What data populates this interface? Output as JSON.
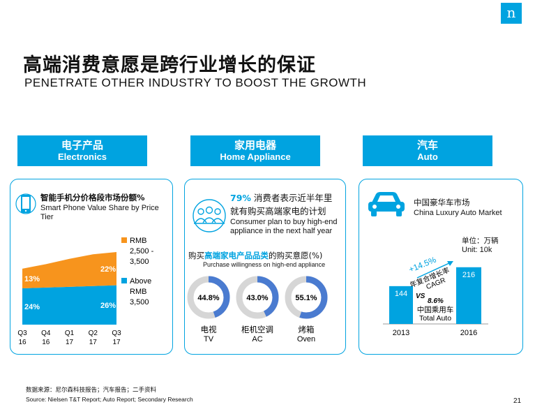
{
  "page": {
    "title_cn": "高端消费意愿是跨行业增长的保证",
    "title_en": "PENETRATE OTHER INDUSTRY TO BOOST THE GROWTH",
    "logo_letter": "n",
    "page_number": "21",
    "source_cn": "数据来源：尼尔森科技报告；汽车报告；二手资料",
    "source_en": "Source: Nielsen T&T Report; Auto Report; Secondary Research",
    "brand_color": "#00a3e0",
    "accent_orange": "#f7941d"
  },
  "categories": [
    {
      "cn": "电子产品",
      "en": "Electronics"
    },
    {
      "cn": "家用电器",
      "en": "Home Appliance"
    },
    {
      "cn": "汽车",
      "en": "Auto"
    }
  ],
  "electronics": {
    "icon": "smartphone-icon",
    "title_cn": "智能手机分价格段市场份额%",
    "title_en_1": "Smart Phone Value Share by Price",
    "title_en_2": "Tier"
  },
  "appliance": {
    "icon": "family-icon",
    "stat_pct": "79%",
    "stat_cn_rest": " 消费者表示近半年里",
    "stat_cn_2": "就有购买高端家电的计划",
    "stat_en_1": "Consumer plan to buy high-end",
    "stat_en_2": "appliance in the next half year",
    "willing_cn_pre": "购买",
    "willing_cn_hl": "高端家电产品品类",
    "willing_cn_post": "的购买意愿(%)",
    "willing_en": "Purchase willingness on high-end appliance"
  },
  "auto": {
    "icon": "car-icon",
    "title_cn": "中国豪华车市场",
    "title_en": "China Luxury Auto Market",
    "unit_cn": "单位：万辆",
    "unit_en": "Unit: 10k"
  },
  "chart_data": [
    {
      "type": "area",
      "categories": [
        "Q3 16",
        "Q4 16",
        "Q1 17",
        "Q2 17",
        "Q3 17"
      ],
      "tick_labels": [
        [
          "Q3",
          "16"
        ],
        [
          "Q4",
          "16"
        ],
        [
          "Q1",
          "17"
        ],
        [
          "Q2",
          "17"
        ],
        [
          "Q3",
          "17"
        ]
      ],
      "stacked": true,
      "ylim": [
        0,
        60
      ],
      "series": [
        {
          "name": "Above RMB 3,500",
          "legend": [
            "Above",
            "RMB",
            "3,500"
          ],
          "color": "#00a3e0",
          "values": [
            24,
            24.5,
            25,
            25.5,
            26
          ],
          "labels": [
            {
              "index": 0,
              "text": "24%"
            },
            {
              "index": 4,
              "text": "26%"
            }
          ]
        },
        {
          "name": "RMB 2,500 - 3,500",
          "legend": [
            "RMB",
            "2,500 -",
            "3,500"
          ],
          "color": "#f7941d",
          "values": [
            13,
            15.5,
            18.5,
            21,
            22
          ],
          "labels": [
            {
              "index": 0,
              "text": "13%"
            },
            {
              "index": 4,
              "text": "22%"
            }
          ]
        }
      ]
    },
    {
      "type": "pie",
      "subtype": "donut",
      "items": [
        {
          "cn": "电视",
          "en": "TV",
          "value": 44.8,
          "label": "44.8%"
        },
        {
          "cn": "柜机空调",
          "en": "AC",
          "value": 43.0,
          "label": "43.0%"
        },
        {
          "cn": "烤箱",
          "en": "Oven",
          "value": 55.1,
          "label": "55.1%"
        }
      ],
      "colors": {
        "fill": "#4a7bd0",
        "rest": "#d6d6d6"
      }
    },
    {
      "type": "bar",
      "categories": [
        "2013",
        "2016"
      ],
      "values": [
        144,
        216
      ],
      "value_labels": [
        "144",
        "216"
      ],
      "ylim": [
        0,
        250
      ],
      "color": "#00a3e0",
      "cagr": {
        "value": "+14.5%",
        "cn": "年复合增长率",
        "en": "CAGR"
      },
      "comparison": {
        "vs": "VS",
        "value": "8.6%",
        "cn": "中国乘用车",
        "en": "Total Auto"
      }
    }
  ]
}
